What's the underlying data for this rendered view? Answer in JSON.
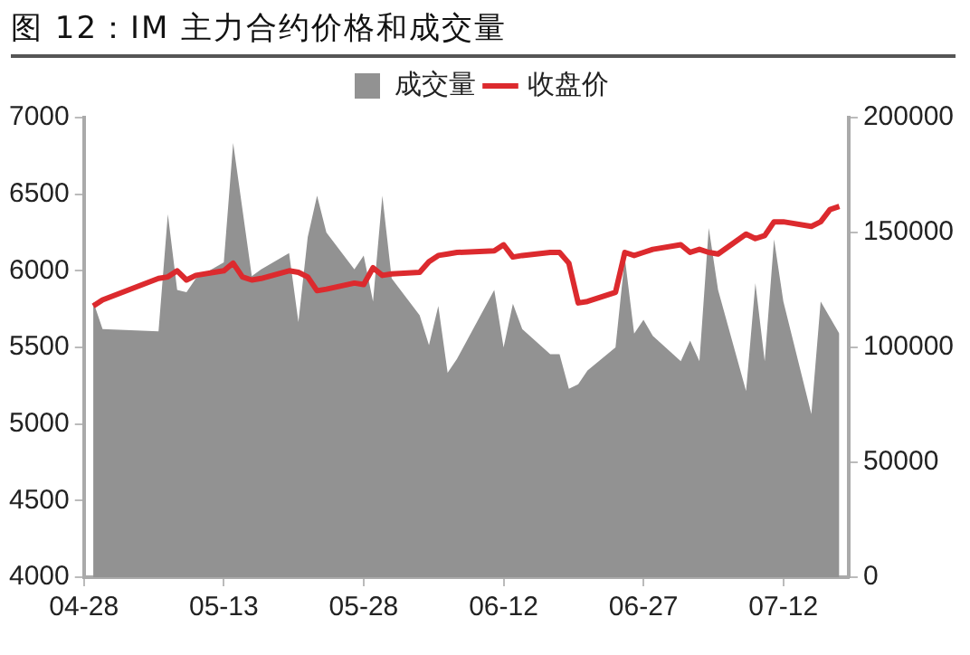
{
  "chart_data": {
    "type": "area",
    "title": "图 12：IM 主力合约价格和成交量",
    "x": [
      "--04-29",
      "--04-30",
      "--05-06",
      "--05-07",
      "--05-08",
      "--05-09",
      "--05-10",
      "--05-13",
      "--05-14",
      "--05-15",
      "--05-16",
      "--05-17",
      "--05-20",
      "--05-21",
      "--05-22",
      "--05-23",
      "--05-24",
      "--05-27",
      "--05-28",
      "--05-29",
      "--05-30",
      "--05-31",
      "--06-03",
      "--06-04",
      "--06-05",
      "--06-06",
      "--06-07",
      "--06-11",
      "--06-12",
      "--06-13",
      "--06-14",
      "--06-17",
      "--06-18",
      "--06-19",
      "--06-20",
      "--06-21",
      "--06-24",
      "--06-25",
      "--06-26",
      "--06-27",
      "--06-28",
      "--07-01",
      "--07-02",
      "--07-03",
      "--07-04",
      "--07-05",
      "--07-08",
      "--07-09",
      "--07-10",
      "--07-11",
      "--07-12",
      "--07-15",
      "--07-16",
      "--07-17",
      "--07-18"
    ],
    "series": [
      {
        "name": "成交量",
        "axis": "y2",
        "color": "#929292",
        "values": [
          120000,
          108000,
          107000,
          158000,
          125000,
          124000,
          130000,
          137000,
          189000,
          160000,
          131000,
          134000,
          141000,
          111000,
          148000,
          166000,
          150000,
          134000,
          140000,
          120000,
          166000,
          130000,
          114000,
          101000,
          118000,
          89000,
          95000,
          125000,
          100000,
          119000,
          108000,
          97000,
          97000,
          82000,
          84000,
          90000,
          100000,
          139000,
          106000,
          112000,
          105000,
          94000,
          103000,
          94000,
          152000,
          125000,
          81000,
          128000,
          94000,
          147000,
          120000,
          71000,
          120000,
          113000,
          106000
        ]
      },
      {
        "name": "收盘价",
        "type": "line",
        "color": "#dc2a2e",
        "values": [
          5770,
          5810,
          5950,
          5960,
          6000,
          5940,
          5970,
          6000,
          6050,
          5960,
          5940,
          5950,
          6000,
          5990,
          5960,
          5870,
          5880,
          5920,
          5910,
          6020,
          5970,
          5980,
          5990,
          6060,
          6100,
          6110,
          6120,
          6130,
          6170,
          6090,
          6100,
          6120,
          6120,
          6050,
          5790,
          5800,
          5860,
          6120,
          6100,
          6120,
          6140,
          6170,
          6120,
          6140,
          6120,
          6110,
          6240,
          6210,
          6230,
          6320,
          6320,
          6290,
          6320,
          6400,
          6420
        ]
      }
    ],
    "xlim": [
      "--04-28",
      "--07-19"
    ],
    "xticks": [
      {
        "value": "--04-28",
        "label": "04-28"
      },
      {
        "value": "--05-13",
        "label": "05-13"
      },
      {
        "value": "--05-28",
        "label": "05-28"
      },
      {
        "value": "--06-12",
        "label": "06-12"
      },
      {
        "value": "--06-27",
        "label": "06-27"
      },
      {
        "value": "--07-12",
        "label": "07-12"
      }
    ],
    "ylim": [
      4000,
      7000
    ],
    "yticks": [
      4000,
      4500,
      5000,
      5500,
      6000,
      6500,
      7000
    ],
    "y2lim": [
      0,
      200000
    ],
    "y2ticks": [
      0,
      50000,
      100000,
      150000,
      200000
    ],
    "grid": false,
    "legend": "top",
    "marker": "none",
    "line_style": "solid"
  }
}
